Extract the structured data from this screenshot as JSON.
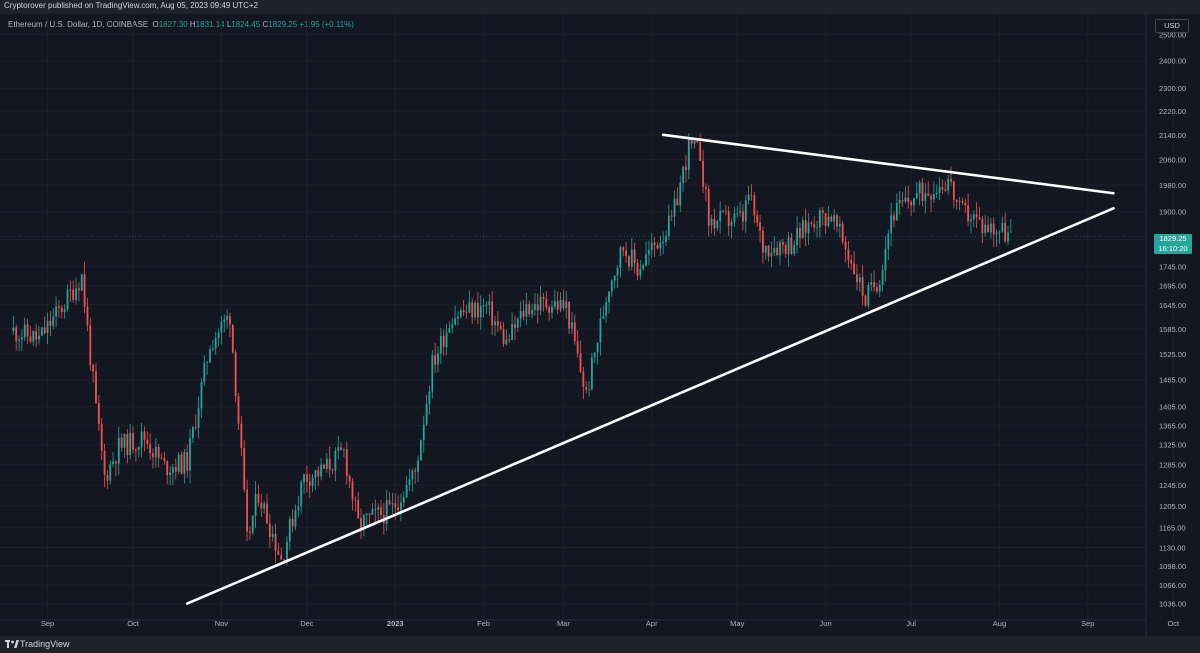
{
  "header": {
    "publisher": "Cryptorover published on TradingView.com, Aug 05, 2023 09:49 UTC+2"
  },
  "ohlc": {
    "symbol": "Ethereum / U.S. Dollar, 1D, COINBASE",
    "open_label": "O",
    "open": "1827.30",
    "high_label": "H",
    "high": "1831.14",
    "low_label": "L",
    "low": "1824.45",
    "close_label": "C",
    "close": "1829.25",
    "change": "+1.95 (+0.11%)"
  },
  "currency": "USD",
  "last_price": {
    "price": "1829.25",
    "countdown": "16:10:20"
  },
  "footer": {
    "brand": "TradingView"
  },
  "colors": {
    "up": "#26a69a",
    "down": "#ef5350",
    "background": "#131722",
    "trendline": "#ffffff"
  },
  "chart_data": {
    "type": "candlestick",
    "title": "",
    "x_tick_labels": [
      "Sep",
      "Oct",
      "Nov",
      "Dec",
      "2023",
      "Feb",
      "Mar",
      "Apr",
      "May",
      "Jun",
      "Jul",
      "Aug",
      "Sep",
      "Oct"
    ],
    "y_tick_labels": [
      "2500.00",
      "2400.00",
      "2300.00",
      "2220.00",
      "2140.00",
      "2060.00",
      "1980.00",
      "1900.00",
      "1820.00",
      "1745.00",
      "1695.00",
      "1645.00",
      "1585.00",
      "1525.00",
      "1465.00",
      "1405.00",
      "1365.00",
      "1325.00",
      "1285.00",
      "1245.00",
      "1205.00",
      "1165.00",
      "1130.00",
      "1098.00",
      "1066.00",
      "1036.00"
    ],
    "y_scale": "log",
    "ylim": [
      1010,
      2580
    ],
    "anchors": [
      [
        "2022-08-20",
        1580
      ],
      [
        "2022-08-29",
        1560
      ],
      [
        "2022-09-07",
        1650
      ],
      [
        "2022-09-13",
        1720
      ],
      [
        "2022-09-18",
        1400
      ],
      [
        "2022-09-21",
        1260
      ],
      [
        "2022-09-26",
        1320
      ],
      [
        "2022-10-05",
        1340
      ],
      [
        "2022-10-12",
        1280
      ],
      [
        "2022-10-20",
        1290
      ],
      [
        "2022-10-28",
        1550
      ],
      [
        "2022-11-04",
        1620
      ],
      [
        "2022-11-08",
        1300
      ],
      [
        "2022-11-10",
        1140
      ],
      [
        "2022-11-14",
        1230
      ],
      [
        "2022-11-22",
        1110
      ],
      [
        "2022-11-30",
        1260
      ],
      [
        "2022-12-06",
        1270
      ],
      [
        "2022-12-14",
        1310
      ],
      [
        "2022-12-19",
        1170
      ],
      [
        "2022-12-31",
        1200
      ],
      [
        "2023-01-08",
        1270
      ],
      [
        "2023-01-14",
        1500
      ],
      [
        "2023-01-21",
        1620
      ],
      [
        "2023-02-02",
        1640
      ],
      [
        "2023-02-09",
        1550
      ],
      [
        "2023-02-16",
        1640
      ],
      [
        "2023-02-24",
        1650
      ],
      [
        "2023-03-02",
        1640
      ],
      [
        "2023-03-09",
        1430
      ],
      [
        "2023-03-17",
        1700
      ],
      [
        "2023-03-22",
        1800
      ],
      [
        "2023-03-27",
        1740
      ],
      [
        "2023-04-08",
        1870
      ],
      [
        "2023-04-14",
        2100
      ],
      [
        "2023-04-18",
        2080
      ],
      [
        "2023-04-21",
        1870
      ],
      [
        "2023-05-03",
        1880
      ],
      [
        "2023-05-05",
        1950
      ],
      [
        "2023-05-10",
        1800
      ],
      [
        "2023-05-20",
        1810
      ],
      [
        "2023-05-28",
        1880
      ],
      [
        "2023-06-03",
        1890
      ],
      [
        "2023-06-10",
        1760
      ],
      [
        "2023-06-15",
        1660
      ],
      [
        "2023-06-20",
        1720
      ],
      [
        "2023-06-24",
        1890
      ],
      [
        "2023-07-03",
        1950
      ],
      [
        "2023-07-13",
        1990
      ],
      [
        "2023-07-14",
        2000
      ],
      [
        "2023-07-18",
        1900
      ],
      [
        "2023-07-22",
        1890
      ],
      [
        "2023-07-26",
        1860
      ],
      [
        "2023-08-01",
        1850
      ],
      [
        "2023-08-05",
        1829.25
      ]
    ],
    "trendlines": [
      {
        "from": [
          "2022-10-20",
          1036
        ],
        "to": [
          "2023-09-10",
          1910
        ]
      },
      {
        "from": [
          "2023-04-05",
          2140
        ],
        "to": [
          "2023-09-10",
          1955
        ]
      }
    ],
    "grid": true,
    "legend": "none"
  }
}
